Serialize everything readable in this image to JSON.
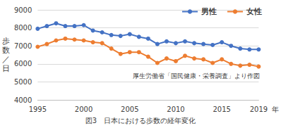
{
  "chart_data": {
    "type": "line",
    "title": "図3　日本における歩数の経年変化",
    "xlabel": "年",
    "ylabel": "歩数／日",
    "annotations": [
      "厚生労働省「国民健康・栄養調査」より作図"
    ],
    "x": [
      1995,
      1996,
      1997,
      1998,
      1999,
      2000,
      2001,
      2002,
      2003,
      2004,
      2005,
      2006,
      2007,
      2008,
      2009,
      2010,
      2011,
      2012,
      2013,
      2014,
      2015,
      2016,
      2017,
      2018,
      2019
    ],
    "series": [
      {
        "name": "男性",
        "color": "#4472c4",
        "values": [
          7950,
          8100,
          8250,
          8100,
          8100,
          8150,
          7850,
          7750,
          7600,
          7550,
          7650,
          7500,
          7400,
          7100,
          7250,
          7150,
          7250,
          7150,
          7100,
          7050,
          7200,
          7000,
          6850,
          6800,
          6800
        ]
      },
      {
        "name": "女性",
        "color": "#ed7d31",
        "values": [
          6950,
          7100,
          7300,
          7400,
          7350,
          7300,
          7200,
          7150,
          6850,
          6550,
          6650,
          6650,
          6400,
          6050,
          6300,
          6150,
          6450,
          6300,
          6250,
          6050,
          6250,
          6000,
          5900,
          5950,
          5850
        ]
      }
    ],
    "xlim": [
      1995,
      2019
    ],
    "xticks": [
      1995,
      2000,
      2005,
      2010,
      2015,
      2019
    ],
    "ylim": [
      4000,
      9000
    ],
    "yticks": [
      4000,
      5000,
      6000,
      7000,
      8000,
      9000
    ],
    "grid": true,
    "legend": "upper right",
    "marker": "circle"
  }
}
